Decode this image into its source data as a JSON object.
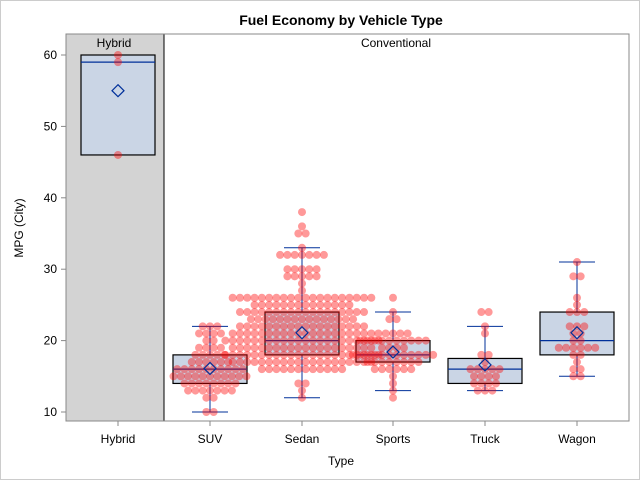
{
  "chart_data": {
    "type": "box",
    "title": "Fuel Economy by Vehicle Type",
    "xlabel": "Type",
    "ylabel": "MPG (City)",
    "ylim": [
      9,
      63
    ],
    "yticks": [
      10,
      20,
      30,
      40,
      50,
      60
    ],
    "panels": [
      {
        "label": "Hybrid",
        "categories": [
          "Hybrid"
        ]
      },
      {
        "label": "Conventional",
        "categories": [
          "SUV",
          "Sedan",
          "Sports",
          "Truck",
          "Wagon"
        ]
      }
    ],
    "categories": [
      "Hybrid",
      "SUV",
      "Sedan",
      "Sports",
      "Truck",
      "Wagon"
    ],
    "boxes": [
      {
        "category": "Hybrid",
        "min": 46,
        "q1": 46,
        "median": 59,
        "q3": 60,
        "max": 60,
        "mean": 55
      },
      {
        "category": "SUV",
        "min": 10,
        "q1": 14,
        "median": 16,
        "q3": 18,
        "max": 22,
        "mean": 16.1
      },
      {
        "category": "Sedan",
        "min": 12,
        "q1": 18,
        "median": 20,
        "q3": 24,
        "max": 33,
        "mean": 21.1
      },
      {
        "category": "Sports",
        "min": 13,
        "q1": 17,
        "median": 18,
        "q3": 20,
        "max": 24,
        "mean": 18.4
      },
      {
        "category": "Truck",
        "min": 13,
        "q1": 14,
        "median": 16,
        "q3": 17.5,
        "max": 22,
        "mean": 16.6
      },
      {
        "category": "Wagon",
        "min": 15,
        "q1": 18,
        "median": 20,
        "q3": 24,
        "max": 31,
        "mean": 21.1
      }
    ],
    "points": {
      "Hybrid": [
        [
          60,
          1
        ],
        [
          59,
          1
        ],
        [
          46,
          1
        ]
      ],
      "SUV": [
        [
          22,
          3
        ],
        [
          21,
          4
        ],
        [
          20,
          2
        ],
        [
          19,
          4
        ],
        [
          18,
          5
        ],
        [
          17,
          6
        ],
        [
          16,
          10
        ],
        [
          15,
          11
        ],
        [
          14,
          8
        ],
        [
          13,
          7
        ],
        [
          12,
          2
        ],
        [
          10,
          2
        ]
      ],
      "Sedan": [
        [
          38,
          1
        ],
        [
          36,
          1
        ],
        [
          35,
          2
        ],
        [
          33,
          1
        ],
        [
          32,
          7
        ],
        [
          30,
          5
        ],
        [
          29,
          5
        ],
        [
          28,
          1
        ],
        [
          27,
          1
        ],
        [
          26,
          20
        ],
        [
          25,
          14
        ],
        [
          24,
          18
        ],
        [
          23,
          15
        ],
        [
          22,
          18
        ],
        [
          21,
          20
        ],
        [
          20,
          22
        ],
        [
          19,
          20
        ],
        [
          18,
          22
        ],
        [
          17,
          20
        ],
        [
          16,
          12
        ],
        [
          14,
          2
        ],
        [
          13,
          1
        ],
        [
          12,
          1
        ]
      ],
      "Sports": [
        [
          26,
          1
        ],
        [
          24,
          1
        ],
        [
          23,
          2
        ],
        [
          21,
          5
        ],
        [
          20,
          10
        ],
        [
          19,
          4
        ],
        [
          18,
          12
        ],
        [
          17,
          8
        ],
        [
          16,
          6
        ],
        [
          15,
          1
        ],
        [
          14,
          1
        ],
        [
          13,
          1
        ],
        [
          12,
          1
        ]
      ],
      "Truck": [
        [
          24,
          2
        ],
        [
          22,
          1
        ],
        [
          21,
          1
        ],
        [
          18,
          2
        ],
        [
          17,
          1
        ],
        [
          16,
          5
        ],
        [
          15,
          4
        ],
        [
          14,
          4
        ],
        [
          13,
          3
        ]
      ],
      "Wagon": [
        [
          31,
          1
        ],
        [
          29,
          2
        ],
        [
          26,
          1
        ],
        [
          25,
          1
        ],
        [
          24,
          3
        ],
        [
          22,
          3
        ],
        [
          21,
          2
        ],
        [
          20,
          2
        ],
        [
          19,
          6
        ],
        [
          18,
          2
        ],
        [
          17,
          1
        ],
        [
          16,
          2
        ],
        [
          15,
          2
        ]
      ]
    },
    "colors": {
      "box_fill": "#cad5e5",
      "line": "#00309a",
      "point": "#ff0000",
      "panel_bg": "#d3d3d3"
    }
  }
}
